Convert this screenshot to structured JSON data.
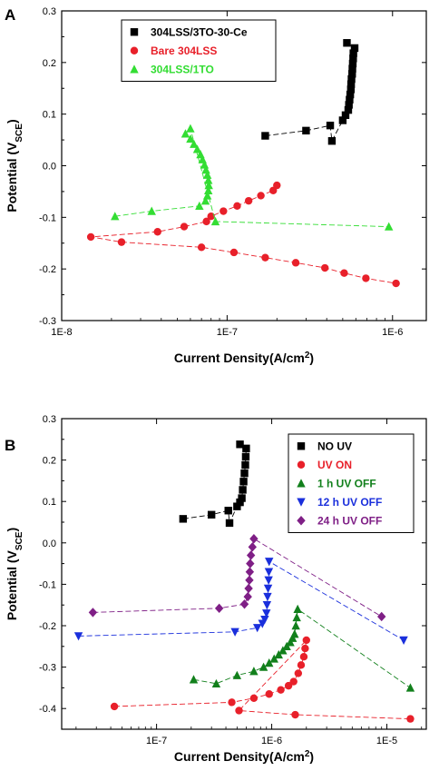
{
  "chart_data": [
    {
      "type": "scatter",
      "panel": "A",
      "xlabel": "Current Density(A/cm²)",
      "ylabel": "Potential (V_SCE)",
      "xscale": "log",
      "xlim": [
        1e-08,
        1.6e-06
      ],
      "ylim": [
        -0.3,
        0.3
      ],
      "xticks": [
        "1E-8",
        "1E-7",
        "1E-6"
      ],
      "yticks": [
        "-0.3",
        "-0.2",
        "-0.1",
        "0.0",
        "0.1",
        "0.2",
        "0.3"
      ],
      "legend_position": "top-left",
      "series": [
        {
          "name": "304LSS/3TO-30-Ce",
          "color": "#000000",
          "marker": "square",
          "points": [
            [
              1.7e-07,
              0.058
            ],
            [
              3e-07,
              0.068
            ],
            [
              4.2e-07,
              0.078
            ],
            [
              4.3e-07,
              0.048
            ],
            [
              5e-07,
              0.088
            ],
            [
              5.2e-07,
              0.098
            ],
            [
              5.4e-07,
              0.108
            ],
            [
              5.45e-07,
              0.118
            ],
            [
              5.5e-07,
              0.128
            ],
            [
              5.55e-07,
              0.138
            ],
            [
              5.6e-07,
              0.148
            ],
            [
              5.62e-07,
              0.158
            ],
            [
              5.65e-07,
              0.168
            ],
            [
              5.7e-07,
              0.178
            ],
            [
              5.72e-07,
              0.188
            ],
            [
              5.75e-07,
              0.198
            ],
            [
              5.78e-07,
              0.208
            ],
            [
              5.8e-07,
              0.218
            ],
            [
              5.9e-07,
              0.228
            ],
            [
              5.3e-07,
              0.238
            ]
          ]
        },
        {
          "name": "Bare 304LSS",
          "color": "#e8202a",
          "marker": "circle",
          "points": [
            [
              2e-07,
              -0.038
            ],
            [
              1.9e-07,
              -0.048
            ],
            [
              1.6e-07,
              -0.058
            ],
            [
              1.35e-07,
              -0.068
            ],
            [
              1.15e-07,
              -0.078
            ],
            [
              9.5e-08,
              -0.088
            ],
            [
              8e-08,
              -0.098
            ],
            [
              7.5e-08,
              -0.108
            ],
            [
              5.5e-08,
              -0.118
            ],
            [
              3.8e-08,
              -0.128
            ],
            [
              1.5e-08,
              -0.138
            ],
            [
              2.3e-08,
              -0.148
            ],
            [
              7e-08,
              -0.158
            ],
            [
              1.1e-07,
              -0.168
            ],
            [
              1.7e-07,
              -0.178
            ],
            [
              2.6e-07,
              -0.188
            ],
            [
              3.9e-07,
              -0.198
            ],
            [
              5.1e-07,
              -0.208
            ],
            [
              6.9e-07,
              -0.218
            ],
            [
              1.05e-06,
              -0.228
            ]
          ]
        },
        {
          "name": "304LSS/1TO",
          "color": "#33dd33",
          "marker": "triangle-up",
          "points": [
            [
              2.1e-08,
              -0.098
            ],
            [
              3.5e-08,
              -0.088
            ],
            [
              6.8e-08,
              -0.078
            ],
            [
              7.4e-08,
              -0.068
            ],
            [
              7.6e-08,
              -0.058
            ],
            [
              7.7e-08,
              -0.048
            ],
            [
              7.75e-08,
              -0.038
            ],
            [
              7.7e-08,
              -0.028
            ],
            [
              7.6e-08,
              -0.018
            ],
            [
              7.45e-08,
              -0.008
            ],
            [
              7.3e-08,
              0.002
            ],
            [
              7.1e-08,
              0.012
            ],
            [
              6.9e-08,
              0.022
            ],
            [
              6.6e-08,
              0.032
            ],
            [
              6.3e-08,
              0.042
            ],
            [
              6e-08,
              0.052
            ],
            [
              5.6e-08,
              0.062
            ],
            [
              6e-08,
              0.072
            ],
            [
              8.5e-08,
              -0.108
            ],
            [
              9.5e-07,
              -0.118
            ]
          ]
        }
      ]
    },
    {
      "type": "scatter",
      "panel": "B",
      "xlabel": "Current Density(A/cm²)",
      "ylabel": "Potential (V_SCE)",
      "xscale": "log",
      "xlim": [
        1.5e-08,
        2.2e-05
      ],
      "ylim": [
        -0.45,
        0.3
      ],
      "xticks": [
        "1E-7",
        "1E-6",
        "1E-5"
      ],
      "yticks": [
        "-0.4",
        "-0.3",
        "-0.2",
        "-0.1",
        "0.0",
        "0.1",
        "0.2",
        "0.3"
      ],
      "legend_position": "top-right",
      "series": [
        {
          "name": "NO UV",
          "color": "#000000",
          "marker": "square",
          "points": [
            [
              1.7e-07,
              0.058
            ],
            [
              3e-07,
              0.068
            ],
            [
              4.2e-07,
              0.078
            ],
            [
              4.3e-07,
              0.048
            ],
            [
              5e-07,
              0.088
            ],
            [
              5.3e-07,
              0.098
            ],
            [
              5.5e-07,
              0.108
            ],
            [
              5.6e-07,
              0.128
            ],
            [
              5.7e-07,
              0.148
            ],
            [
              5.8e-07,
              0.168
            ],
            [
              5.9e-07,
              0.188
            ],
            [
              5.95e-07,
              0.208
            ],
            [
              6e-07,
              0.228
            ],
            [
              5.3e-07,
              0.238
            ]
          ]
        },
        {
          "name": "UV ON",
          "color": "#e8202a",
          "marker": "circle",
          "points": [
            [
              4.3e-08,
              -0.395
            ],
            [
              4.5e-07,
              -0.385
            ],
            [
              7e-07,
              -0.375
            ],
            [
              9.5e-07,
              -0.365
            ],
            [
              1.2e-06,
              -0.355
            ],
            [
              1.4e-06,
              -0.345
            ],
            [
              1.55e-06,
              -0.335
            ],
            [
              1.7e-06,
              -0.315
            ],
            [
              1.8e-06,
              -0.295
            ],
            [
              1.9e-06,
              -0.275
            ],
            [
              1.95e-06,
              -0.255
            ],
            [
              2e-06,
              -0.235
            ],
            [
              5.2e-07,
              -0.405
            ],
            [
              1.6e-06,
              -0.415
            ],
            [
              1.6e-05,
              -0.425
            ]
          ]
        },
        {
          "name": "1 h UV OFF",
          "color": "#12801c",
          "marker": "triangle-up",
          "points": [
            [
              2.1e-07,
              -0.33
            ],
            [
              3.3e-07,
              -0.34
            ],
            [
              5e-07,
              -0.32
            ],
            [
              7e-07,
              -0.31
            ],
            [
              8.5e-07,
              -0.3
            ],
            [
              9.5e-07,
              -0.29
            ],
            [
              1.05e-06,
              -0.28
            ],
            [
              1.15e-06,
              -0.27
            ],
            [
              1.25e-06,
              -0.26
            ],
            [
              1.35e-06,
              -0.25
            ],
            [
              1.45e-06,
              -0.24
            ],
            [
              1.52e-06,
              -0.23
            ],
            [
              1.58e-06,
              -0.22
            ],
            [
              1.62e-06,
              -0.2
            ],
            [
              1.65e-06,
              -0.18
            ],
            [
              1.68e-06,
              -0.16
            ],
            [
              1.6e-05,
              -0.35
            ]
          ]
        },
        {
          "name": "12 h UV OFF",
          "color": "#1a2fdc",
          "marker": "triangle-down",
          "points": [
            [
              2.1e-08,
              -0.225
            ],
            [
              4.8e-07,
              -0.215
            ],
            [
              7.5e-07,
              -0.205
            ],
            [
              8.3e-07,
              -0.195
            ],
            [
              8.7e-07,
              -0.185
            ],
            [
              9e-07,
              -0.17
            ],
            [
              9.1e-07,
              -0.15
            ],
            [
              9.2e-07,
              -0.13
            ],
            [
              9.3e-07,
              -0.11
            ],
            [
              9.4e-07,
              -0.09
            ],
            [
              9.45e-07,
              -0.07
            ],
            [
              9.5e-07,
              -0.045
            ],
            [
              1.4e-05,
              -0.235
            ]
          ]
        },
        {
          "name": "24 h UV OFF",
          "color": "#7f1f86",
          "marker": "diamond",
          "points": [
            [
              2.8e-08,
              -0.168
            ],
            [
              3.5e-07,
              -0.158
            ],
            [
              5.8e-07,
              -0.148
            ],
            [
              6.2e-07,
              -0.13
            ],
            [
              6.3e-07,
              -0.11
            ],
            [
              6.4e-07,
              -0.09
            ],
            [
              6.45e-07,
              -0.07
            ],
            [
              6.5e-07,
              -0.05
            ],
            [
              6.6e-07,
              -0.03
            ],
            [
              6.8e-07,
              -0.01
            ],
            [
              7e-07,
              0.01
            ],
            [
              9e-06,
              -0.178
            ]
          ]
        }
      ]
    }
  ]
}
